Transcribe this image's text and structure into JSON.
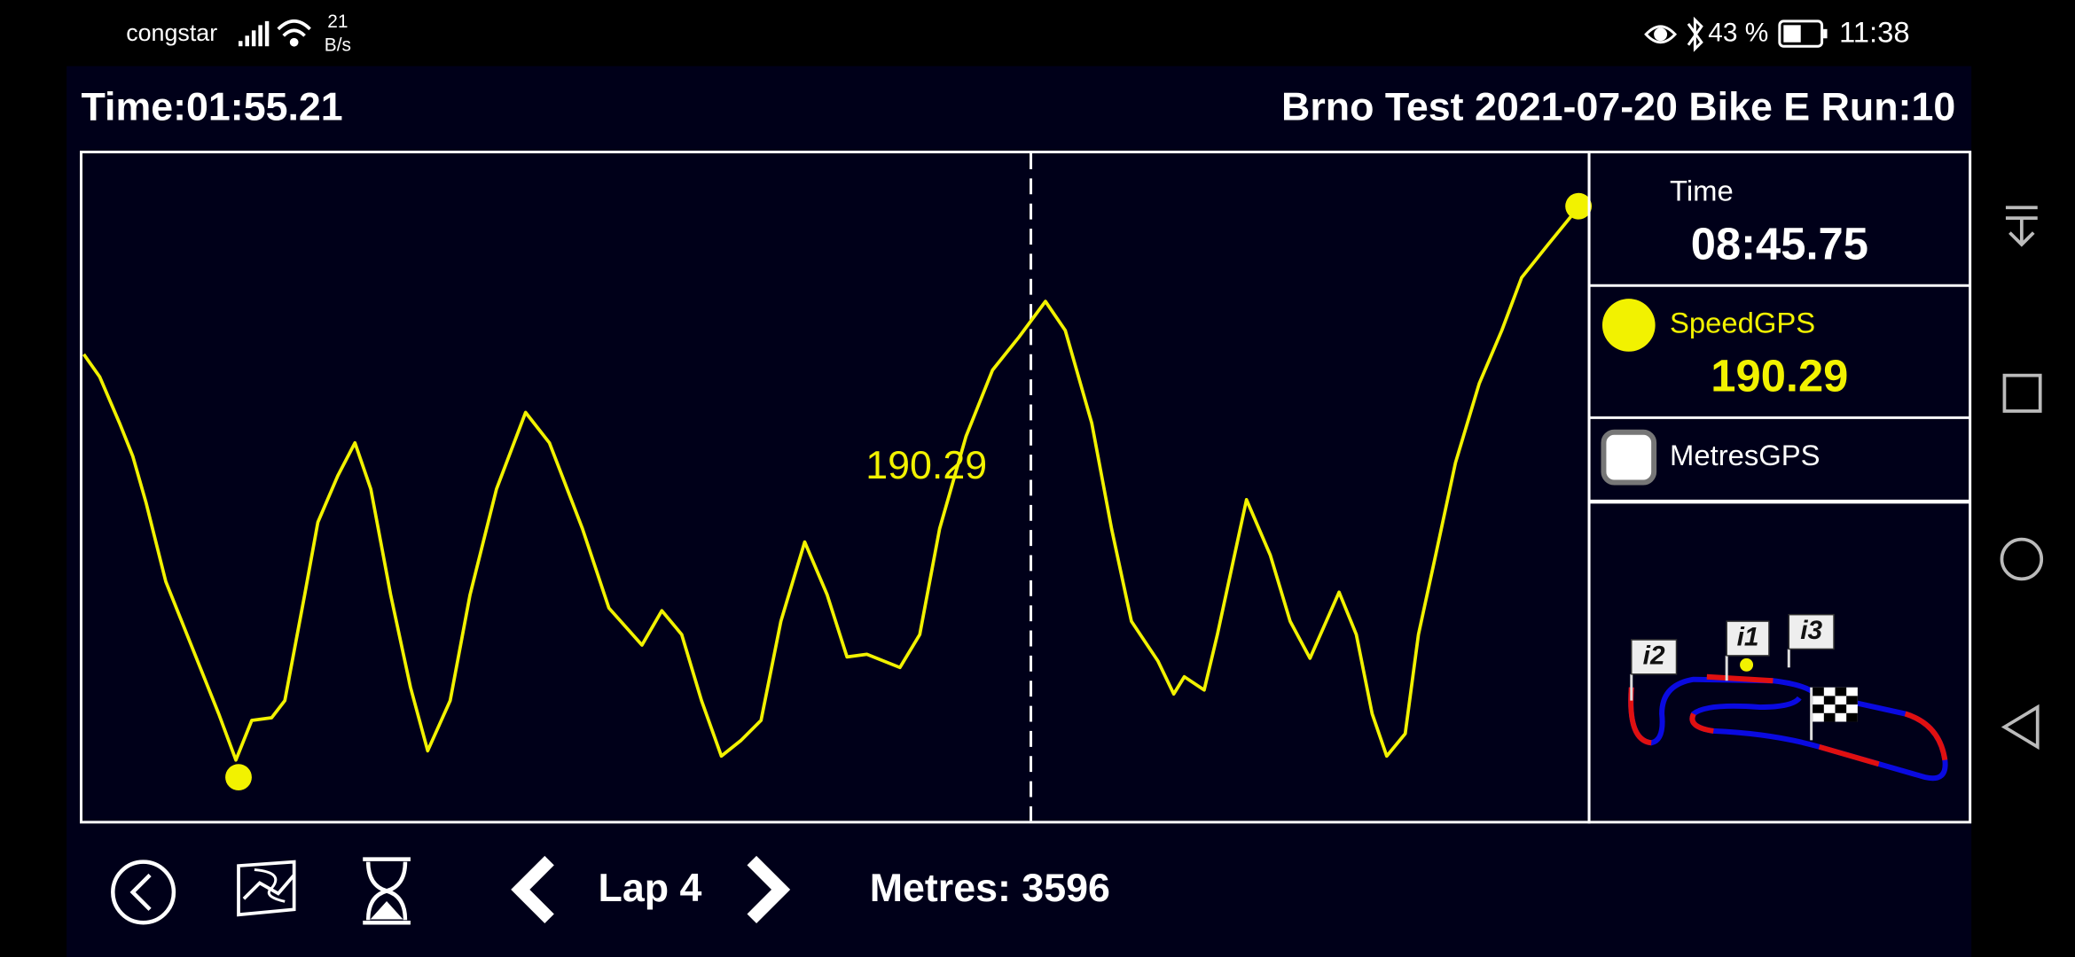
{
  "status_bar": {
    "carrier": "congstar",
    "net_speed": "21",
    "net_unit": "B/s",
    "battery": "43 %",
    "clock": "11:38"
  },
  "header": {
    "time": "Time:01:55.21",
    "session": "Brno Test 2021-07-20 Bike E Run:10"
  },
  "plot": {
    "cursor_label": "190.29"
  },
  "channels": [
    {
      "name": "Time",
      "value": "08:45.75"
    },
    {
      "name": "SpeedGPS",
      "value": "190.29"
    },
    {
      "name": "MetresGPS"
    }
  ],
  "track_map": {
    "markers": [
      "i2",
      "i1",
      "i3"
    ]
  },
  "toolbar": {
    "lap": "Lap 4",
    "metres": "Metres: 3596"
  }
}
